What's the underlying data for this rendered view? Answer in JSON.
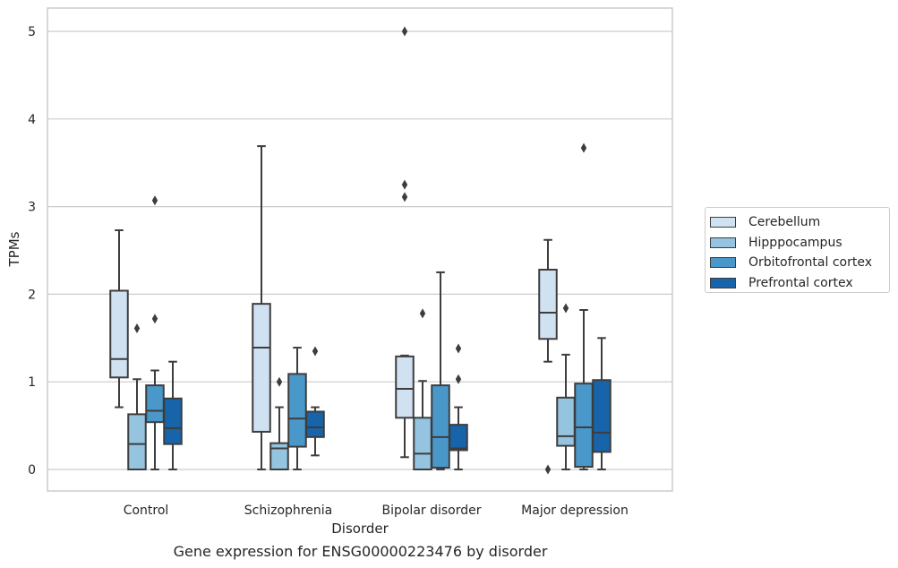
{
  "chart_data": {
    "type": "box",
    "title": "",
    "caption": "Gene expression for ENSG00000223476 by disorder",
    "xlabel": "Disorder",
    "ylabel": "TPMs",
    "ylim": [
      -0.25,
      5.25
    ],
    "yticks": [
      0,
      1,
      2,
      3,
      4,
      5
    ],
    "grid": "horizontal",
    "legend_position": "right",
    "categories": [
      "Control",
      "Schizophrenia",
      "Bipolar disorder",
      "Major depression"
    ],
    "series": [
      {
        "name": "Cerebellum",
        "color": "#d0e1f2",
        "boxes": [
          {
            "min": 0.71,
            "q1": 1.05,
            "median": 1.26,
            "q3": 2.04,
            "max": 2.73,
            "outliers": []
          },
          {
            "min": 0.0,
            "q1": 0.43,
            "median": 1.39,
            "q3": 1.89,
            "max": 3.69,
            "outliers": []
          },
          {
            "min": 0.14,
            "q1": 0.59,
            "median": 0.92,
            "q3": 1.29,
            "max": 1.3,
            "outliers": [
              3.11,
              3.25,
              5.0
            ]
          },
          {
            "min": 1.23,
            "q1": 1.49,
            "median": 1.79,
            "q3": 2.28,
            "max": 2.62,
            "outliers": [
              0.0
            ]
          }
        ]
      },
      {
        "name": "Hipppocampus",
        "color": "#94c4df",
        "boxes": [
          {
            "min": 0.0,
            "q1": 0.0,
            "median": 0.29,
            "q3": 0.63,
            "max": 1.03,
            "outliers": [
              1.61
            ]
          },
          {
            "min": 0.0,
            "q1": 0.0,
            "median": 0.24,
            "q3": 0.3,
            "max": 0.71,
            "outliers": [
              1.0
            ]
          },
          {
            "min": 0.0,
            "q1": 0.0,
            "median": 0.18,
            "q3": 0.59,
            "max": 1.01,
            "outliers": [
              1.78
            ]
          },
          {
            "min": 0.0,
            "q1": 0.27,
            "median": 0.38,
            "q3": 0.82,
            "max": 1.31,
            "outliers": [
              1.84
            ]
          }
        ]
      },
      {
        "name": "Orbitofrontal cortex",
        "color": "#4a98c9",
        "boxes": [
          {
            "min": 0.0,
            "q1": 0.54,
            "median": 0.67,
            "q3": 0.96,
            "max": 1.13,
            "outliers": [
              1.72,
              3.07
            ]
          },
          {
            "min": 0.0,
            "q1": 0.26,
            "median": 0.58,
            "q3": 1.09,
            "max": 1.39,
            "outliers": []
          },
          {
            "min": 0.0,
            "q1": 0.02,
            "median": 0.37,
            "q3": 0.96,
            "max": 2.25,
            "outliers": []
          },
          {
            "min": 0.0,
            "q1": 0.03,
            "median": 0.48,
            "q3": 0.98,
            "max": 1.82,
            "outliers": [
              3.67
            ]
          }
        ]
      },
      {
        "name": "Prefrontal cortex",
        "color": "#1764ab",
        "boxes": [
          {
            "min": 0.0,
            "q1": 0.29,
            "median": 0.47,
            "q3": 0.81,
            "max": 1.23,
            "outliers": []
          },
          {
            "min": 0.16,
            "q1": 0.37,
            "median": 0.48,
            "q3": 0.66,
            "max": 0.71,
            "outliers": [
              1.35
            ]
          },
          {
            "min": 0.0,
            "q1": 0.22,
            "median": 0.24,
            "q3": 0.51,
            "max": 0.71,
            "outliers": [
              1.03,
              1.38
            ]
          },
          {
            "min": 0.0,
            "q1": 0.2,
            "median": 0.42,
            "q3": 1.02,
            "max": 1.5,
            "outliers": []
          }
        ]
      }
    ]
  }
}
